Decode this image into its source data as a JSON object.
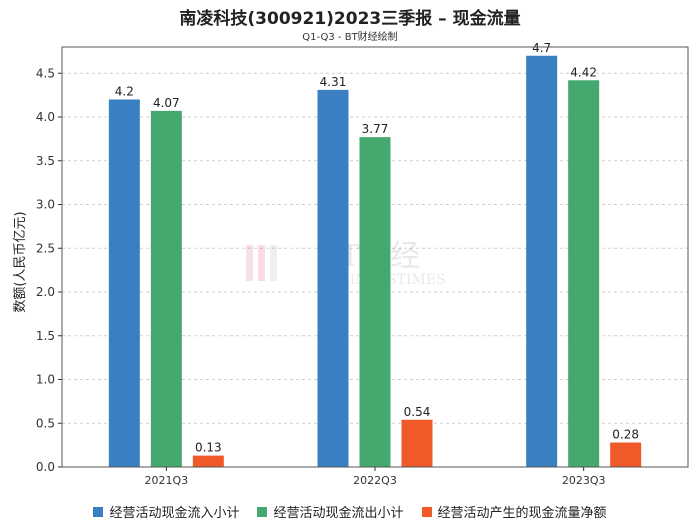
{
  "chart_data": {
    "type": "bar",
    "title": "南凌科技(300921)2023三季报 – 现金流量",
    "subtitle": "Q1-Q3 - BT财经绘制",
    "ylabel": "数额(人民币亿元)",
    "xlabel": "",
    "ylim": [
      0,
      4.8
    ],
    "yticks": [
      "0.0",
      "0.5",
      "1.0",
      "1.5",
      "2.0",
      "2.5",
      "3.0",
      "3.5",
      "4.0",
      "4.5"
    ],
    "categories": [
      "2021Q3",
      "2022Q3",
      "2023Q3"
    ],
    "series": [
      {
        "name": "经营活动现金流入小计",
        "color": "#3a7fc1",
        "values": [
          4.2,
          4.31,
          4.7
        ],
        "labels": [
          "4.2",
          "4.31",
          "4.7"
        ]
      },
      {
        "name": "经营活动现金流出小计",
        "color": "#45a86f",
        "values": [
          4.07,
          3.77,
          4.42
        ],
        "labels": [
          "4.07",
          "3.77",
          "4.42"
        ]
      },
      {
        "name": "经营活动产生的现金流量净额",
        "color": "#ef5a28",
        "values": [
          0.13,
          0.54,
          0.28
        ],
        "labels": [
          "0.13",
          "0.54",
          "0.28"
        ]
      }
    ],
    "grid": true,
    "legend_position": "bottom",
    "watermark": {
      "line1": "BT财经",
      "line2": "BUSINESSTIMES"
    }
  }
}
